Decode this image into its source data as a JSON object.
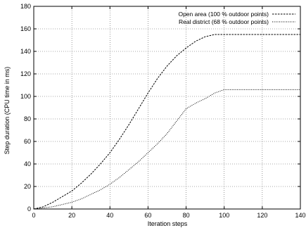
{
  "chart_data": {
    "type": "line",
    "title": "",
    "xlabel": "Iteration steps",
    "ylabel": "Step duration (CPU time in ms)",
    "xlim": [
      0,
      140
    ],
    "ylim": [
      0,
      180
    ],
    "xticks": [
      0,
      20,
      40,
      60,
      80,
      100,
      120,
      140
    ],
    "yticks": [
      0,
      20,
      40,
      60,
      80,
      100,
      120,
      140,
      160,
      180
    ],
    "grid": true,
    "legend_position": "top-right",
    "series": [
      {
        "name": "Open area (100 % outdoor points)",
        "color": "#000000",
        "dash": "dashed",
        "x": [
          0,
          5,
          10,
          15,
          20,
          25,
          30,
          35,
          40,
          45,
          50,
          55,
          60,
          65,
          70,
          75,
          80,
          85,
          90,
          95,
          100,
          105,
          110,
          115,
          120,
          125,
          130,
          135,
          140
        ],
        "y": [
          0,
          2,
          6,
          11,
          16,
          23,
          31,
          40,
          50,
          62,
          75,
          89,
          103,
          116,
          127,
          136,
          143,
          149,
          153,
          155,
          155,
          155,
          155,
          155,
          155,
          155,
          155,
          155,
          155
        ]
      },
      {
        "name": "Real district (68 % outdoor points)",
        "color": "#000000",
        "dash": "dotted",
        "x": [
          0,
          5,
          10,
          15,
          20,
          25,
          30,
          35,
          40,
          45,
          50,
          55,
          60,
          65,
          70,
          75,
          80,
          85,
          90,
          95,
          100,
          105,
          110,
          115,
          120,
          125,
          130,
          135,
          140
        ],
        "y": [
          0,
          1,
          2,
          4,
          6,
          9,
          13,
          17,
          22,
          28,
          35,
          42,
          50,
          58,
          67,
          78,
          89,
          94,
          98,
          103,
          106,
          106,
          106,
          106,
          106,
          106,
          106,
          106,
          106
        ]
      }
    ]
  }
}
